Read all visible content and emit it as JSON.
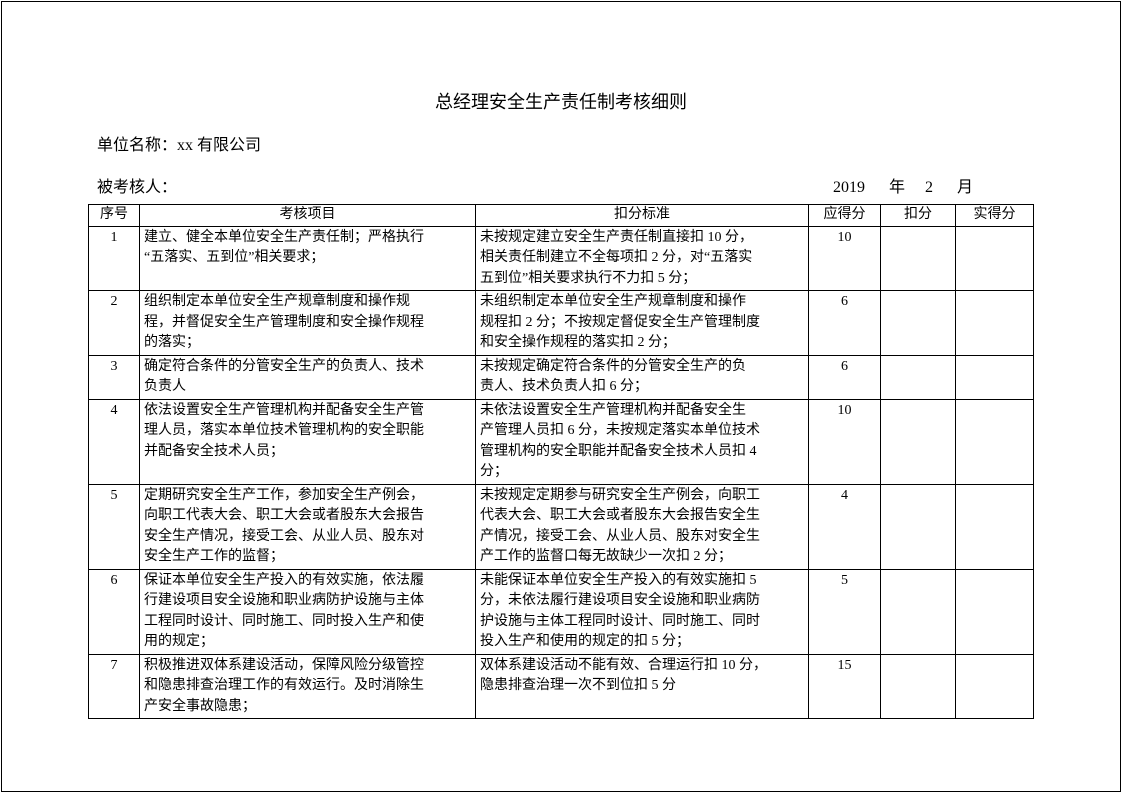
{
  "title": "总经理安全生产责任制考核细则",
  "unit_label": "单位名称：xx 有限公司",
  "examinee_label": "被考核人：",
  "date": {
    "year": "2019",
    "year_unit": "年",
    "month": "2",
    "month_unit": "月"
  },
  "table": {
    "headers": [
      "序号",
      "考核项目",
      "扣分标准",
      "应得分",
      "扣分",
      "实得分"
    ],
    "rows": [
      {
        "no": "1",
        "item": "建立、健全本单位安全生产责任制；严格执行\n“五落实、五到位”相关要求；",
        "criteria": "未按规定建立安全生产责任制直接扣 10 分，\n相关责任制建立不全每项扣 2 分，对“五落实\n五到位”相关要求执行不力扣 5 分；",
        "score": "10",
        "deduct": "",
        "actual": ""
      },
      {
        "no": "2",
        "item": "组织制定本单位安全生产规章制度和操作规\n程，并督促安全生产管理制度和安全操作规程\n的落实；",
        "criteria": "未组织制定本单位安全生产规章制度和操作\n规程扣 2 分；不按规定督促安全生产管理制度\n和安全操作规程的落实扣 2 分；",
        "score": "6",
        "deduct": "",
        "actual": ""
      },
      {
        "no": "3",
        "item": "确定符合条件的分管安全生产的负责人、技术\n负责人",
        "criteria": "未按规定确定符合条件的分管安全生产的负\n责人、技术负责人扣 6 分；",
        "score": "6",
        "deduct": "",
        "actual": ""
      },
      {
        "no": "4",
        "item": "依法设置安全生产管理机构并配备安全生产管\n理人员，落实本单位技术管理机构的安全职能\n并配备安全技术人员；",
        "criteria": "未依法设置安全生产管理机构并配备安全生\n产管理人员扣 6 分，未按规定落实本单位技术\n管理机构的安全职能并配备安全技术人员扣 4\n分；",
        "score": "10",
        "deduct": "",
        "actual": ""
      },
      {
        "no": "5",
        "item": "定期研究安全生产工作，参加安全生产例会，\n向职工代表大会、职工大会或者股东大会报告\n安全生产情况，接受工会、从业人员、股东对\n安全生产工作的监督；",
        "criteria": "未按规定定期参与研究安全生产例会，向职工\n代表大会、职工大会或者股东大会报告安全生\n产情况，接受工会、从业人员、股东对安全生\n产工作的监督口每无故缺少一次扣 2 分；",
        "score": "4",
        "deduct": "",
        "actual": ""
      },
      {
        "no": "6",
        "item": "保证本单位安全生产投入的有效实施，依法履\n行建设项目安全设施和职业病防护设施与主体\n工程同时设计、同时施工、同时投入生产和使\n用的规定；",
        "criteria": "未能保证本单位安全生产投入的有效实施扣 5\n分，未依法履行建设项目安全设施和职业病防\n护设施与主体工程同时设计、同时施工、同时\n投入生产和使用的规定的扣 5 分；",
        "score": "5",
        "deduct": "",
        "actual": ""
      },
      {
        "no": "7",
        "item": "积极推进双体系建设活动，保障风险分级管控\n和隐患排查治理工作的有效运行。及时消除生\n产安全事故隐患；",
        "criteria": "双体系建设活动不能有效、合理运行扣 10 分，\n隐患排查治理一次不到位扣 5 分",
        "score": "15",
        "deduct": "",
        "actual": ""
      }
    ]
  }
}
